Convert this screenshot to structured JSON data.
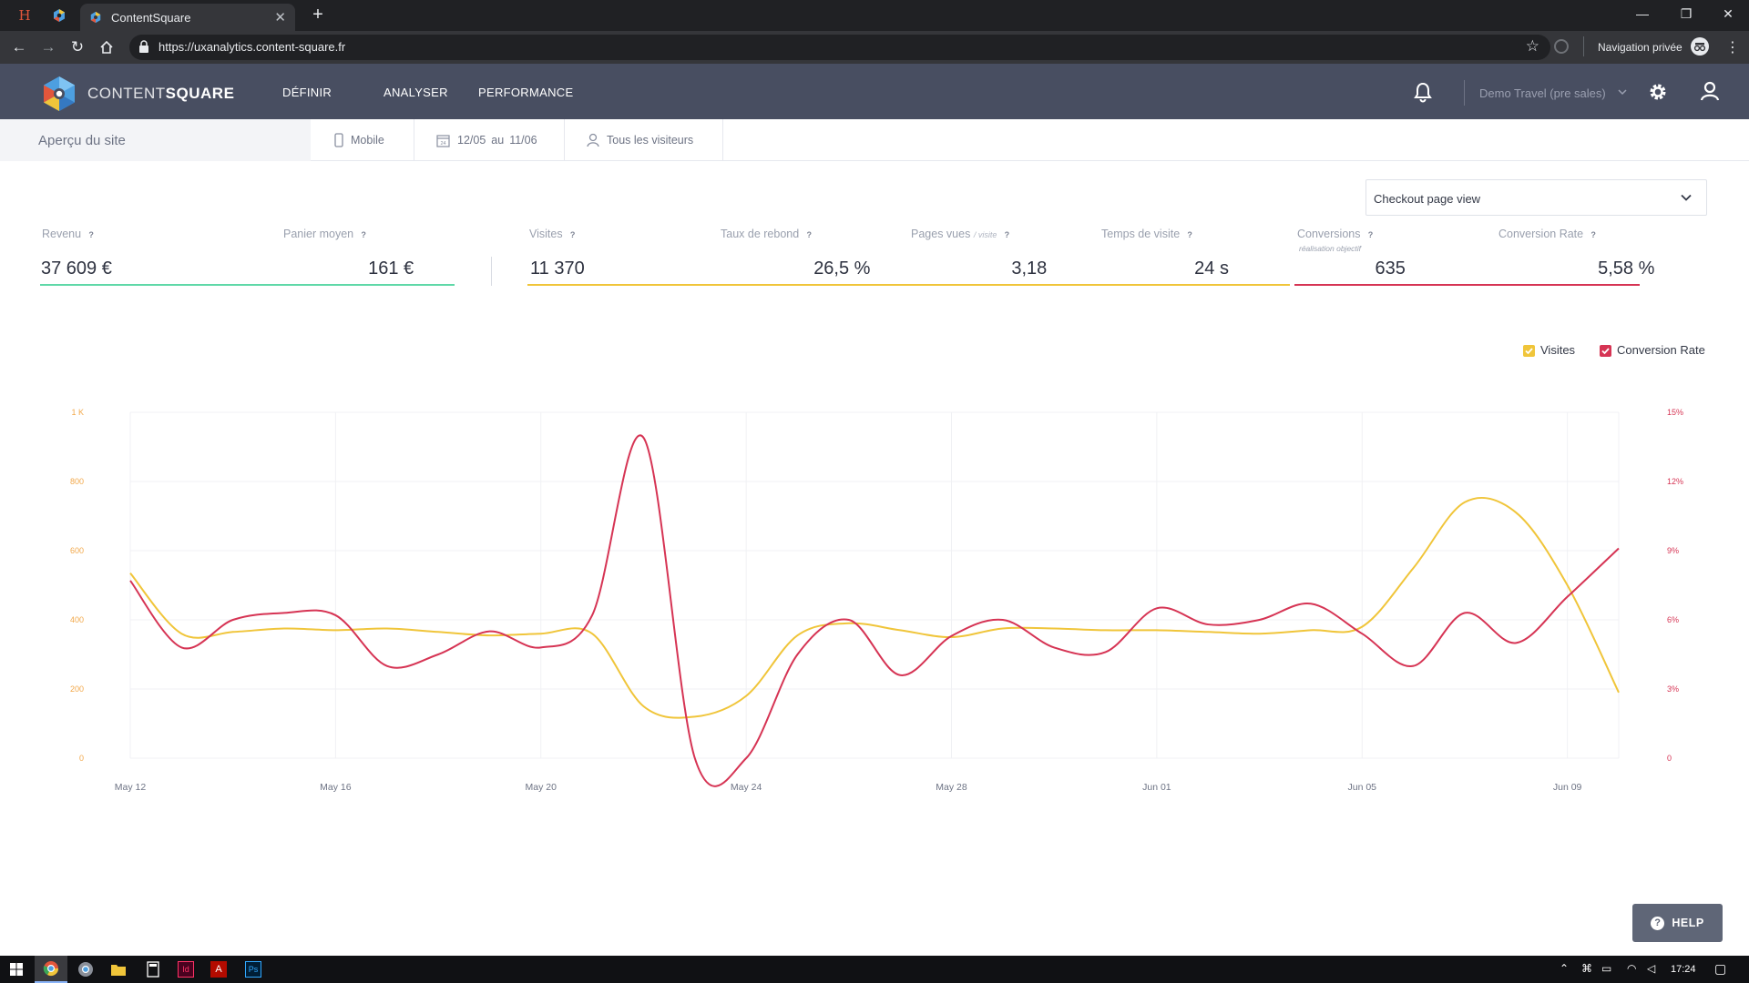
{
  "browser": {
    "tab_title": "ContentSquare",
    "url": "https://uxanalytics.content-square.fr",
    "private_label": "Navigation privée"
  },
  "app": {
    "brand_thin": "CONTENT",
    "brand_bold": "SQUARE",
    "nav": [
      "DÉFINIR",
      "ANALYSER",
      "PERFORMANCE"
    ],
    "account": "Demo Travel (pre sales)"
  },
  "filters": {
    "page_title": "Aperçu du site",
    "device": "Mobile",
    "date_start": "12/05",
    "date_sep": "au",
    "date_end": "11/06",
    "segment": "Tous les visiteurs"
  },
  "selector": {
    "value": "Checkout page view"
  },
  "metrics": [
    {
      "label": "Revenu",
      "value": "37 609 €"
    },
    {
      "label": "Panier moyen",
      "value": "161 €"
    },
    {
      "label": "Visites",
      "value": "11 370"
    },
    {
      "label": "Taux de rebond",
      "value": "26,5 %"
    },
    {
      "label": "Pages vues",
      "label_sub": "/ visite",
      "value": "3,18"
    },
    {
      "label": "Temps de visite",
      "value": "24 s"
    },
    {
      "label": "Conversions",
      "note": "réalisation objectif",
      "value": "635"
    },
    {
      "label": "Conversion Rate",
      "value": "5,58 %"
    }
  ],
  "help_label": "HELP",
  "clock": "17:24",
  "colors": {
    "revenue": "#5fd8a8",
    "visits": "#f0c53a",
    "conversion": "#d63454",
    "header": "#484e61"
  },
  "chart_data": {
    "type": "line",
    "x": [
      "May 12",
      "May 13",
      "May 14",
      "May 15",
      "May 16",
      "May 17",
      "May 18",
      "May 19",
      "May 20",
      "May 21",
      "May 22",
      "May 23",
      "May 24",
      "May 25",
      "May 26",
      "May 27",
      "May 28",
      "May 29",
      "May 30",
      "May 31",
      "Jun 01",
      "Jun 02",
      "Jun 03",
      "Jun 04",
      "Jun 05",
      "Jun 06",
      "Jun 07",
      "Jun 08",
      "Jun 09",
      "Jun 10"
    ],
    "x_ticks": [
      "May 12",
      "May 16",
      "May 20",
      "May 24",
      "May 28",
      "Jun 01",
      "Jun 05",
      "Jun 09"
    ],
    "series": [
      {
        "name": "Visites",
        "axis": "left",
        "values": [
          535,
          360,
          365,
          375,
          370,
          375,
          365,
          355,
          360,
          360,
          150,
          120,
          180,
          355,
          390,
          370,
          350,
          375,
          375,
          370,
          370,
          365,
          360,
          370,
          380,
          550,
          740,
          710,
          500,
          190
        ]
      },
      {
        "name": "Conversion Rate",
        "axis": "right",
        "values": [
          7.7,
          4.8,
          6.0,
          6.3,
          6.2,
          4.0,
          4.5,
          5.5,
          4.8,
          6.2,
          13.9,
          0,
          0,
          4.5,
          6.0,
          3.6,
          5.3,
          6.0,
          4.8,
          4.6,
          6.5,
          5.8,
          6.0,
          6.7,
          5.4,
          4.0,
          6.3,
          5.0,
          7.0,
          9.1
        ]
      }
    ],
    "y_left": {
      "ticks": [
        "0",
        "200",
        "400",
        "600",
        "800",
        "1 K"
      ],
      "ylim": [
        0,
        1000
      ]
    },
    "y_right": {
      "ticks": [
        "0",
        "3%",
        "6%",
        "9%",
        "12%",
        "15%"
      ],
      "ylim": [
        0,
        15
      ]
    },
    "legend": [
      "Visites",
      "Conversion Rate"
    ],
    "legend_position": "top-right",
    "grid": true
  }
}
